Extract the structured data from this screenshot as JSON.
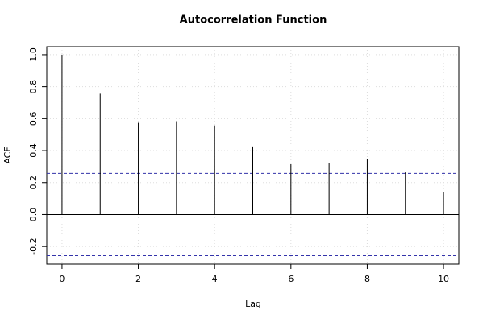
{
  "chart_data": {
    "type": "acf",
    "title": "Autocorrelation Function",
    "x_label": "Lag",
    "y_label": "ACF",
    "x": [
      0,
      1,
      2,
      3,
      4,
      5,
      6,
      7,
      8,
      9,
      10
    ],
    "values": [
      1.0,
      0.756,
      0.574,
      0.584,
      0.558,
      0.426,
      0.315,
      0.32,
      0.345,
      0.264,
      0.142
    ],
    "color": "#000000",
    "ci_lines": [
      0.257,
      -0.257
    ],
    "ci_color": "#3333aa",
    "xlim": [
      -0.4,
      10.4
    ],
    "xticks": [
      0,
      2,
      4,
      6,
      8,
      10
    ],
    "ylim": [
      -0.31,
      1.05
    ],
    "yticks": [
      -0.2,
      {
        "value": 0,
        "label": "0.0"
      },
      0.2,
      0.4,
      0.6,
      0.8,
      {
        "value": 1,
        "label": "1.0"
      }
    ],
    "grid": true
  }
}
